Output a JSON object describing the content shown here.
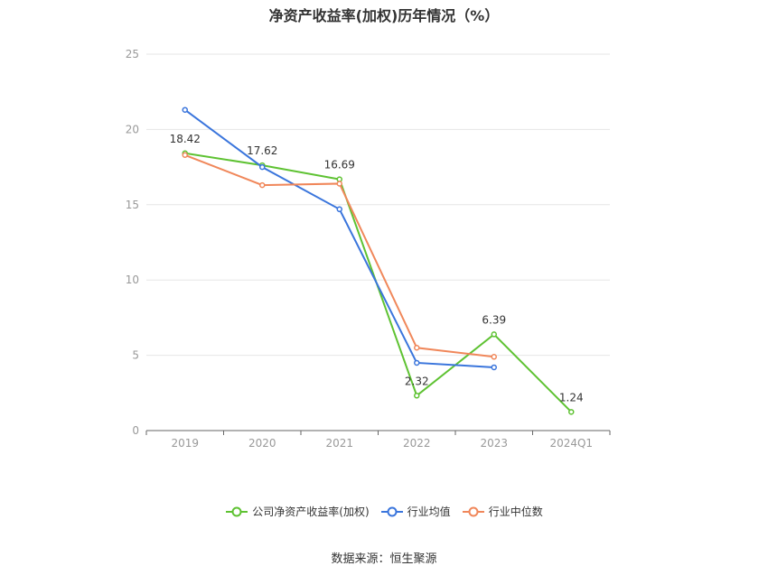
{
  "chart_data": {
    "type": "line",
    "title": "净资产收益率(加权)历年情况（%）",
    "categories": [
      "2019",
      "2020",
      "2021",
      "2022",
      "2023",
      "2024Q1"
    ],
    "ylim": [
      0,
      25
    ],
    "yticks": [
      "0",
      "5",
      "10",
      "15",
      "20",
      "25"
    ],
    "grid": true,
    "legend_position": "bottom",
    "series": [
      {
        "name": "公司净资产收益率(加权)",
        "color": "#5ec232",
        "values": [
          18.42,
          17.62,
          16.69,
          2.32,
          6.39,
          1.24
        ],
        "labels": [
          "18.42",
          "17.62",
          "16.69",
          "2.32",
          "6.39",
          "1.24"
        ]
      },
      {
        "name": "行业均值",
        "color": "#3a75dc",
        "values": [
          21.3,
          17.5,
          14.7,
          4.5,
          4.2,
          null
        ]
      },
      {
        "name": "行业中位数",
        "color": "#f0875a",
        "values": [
          18.3,
          16.3,
          16.4,
          5.5,
          4.9,
          null
        ]
      }
    ]
  },
  "source": "数据来源：恒生聚源"
}
